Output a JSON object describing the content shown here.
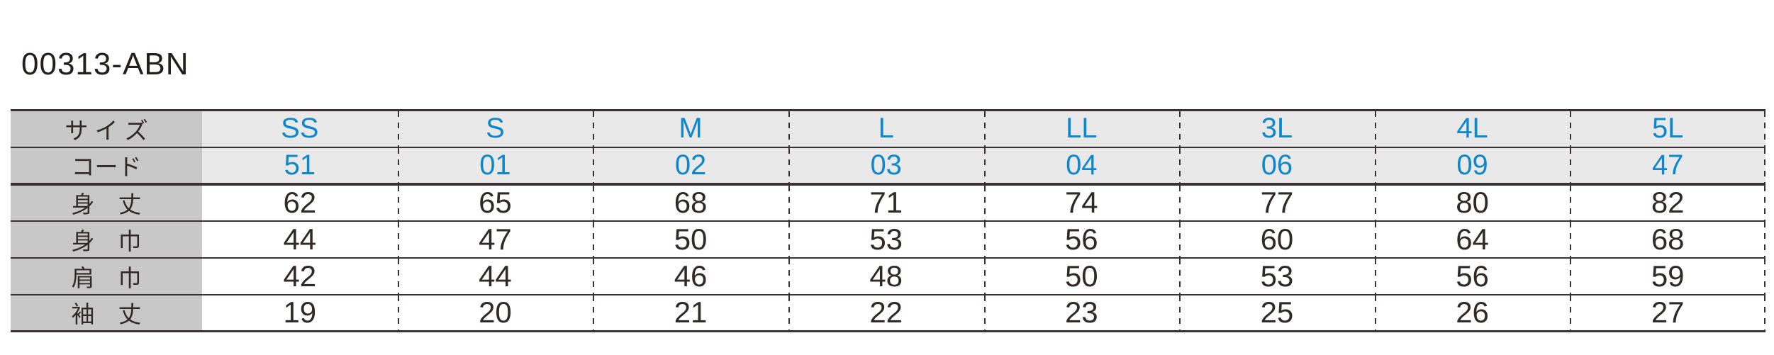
{
  "title": "00313-ABN",
  "colors": {
    "accent_blue": "#0f87cd",
    "label_column_bg": "#c8c8c9",
    "shaded_row_bg": "#e9e9ea",
    "grid_line": "#3a3133",
    "text_dark": "#312927"
  },
  "table": {
    "size_label": "サ イ ズ",
    "code_label": "コード",
    "sizes": [
      "SS",
      "S",
      "M",
      "L",
      "LL",
      "3L",
      "4L",
      "5L"
    ],
    "codes": [
      "51",
      "01",
      "02",
      "03",
      "04",
      "06",
      "09",
      "47"
    ],
    "measure_rows": [
      {
        "label": "身　丈",
        "values": [
          "62",
          "65",
          "68",
          "71",
          "74",
          "77",
          "80",
          "82"
        ]
      },
      {
        "label": "身　巾",
        "values": [
          "44",
          "47",
          "50",
          "53",
          "56",
          "60",
          "64",
          "68"
        ]
      },
      {
        "label": "肩　巾",
        "values": [
          "42",
          "44",
          "46",
          "48",
          "50",
          "53",
          "56",
          "59"
        ]
      },
      {
        "label": "袖　丈",
        "values": [
          "19",
          "20",
          "21",
          "22",
          "23",
          "25",
          "26",
          "27"
        ]
      }
    ]
  },
  "chart_data": {
    "type": "table",
    "title": "00313-ABN",
    "columns": [
      "SS",
      "S",
      "M",
      "L",
      "LL",
      "3L",
      "4L",
      "5L"
    ],
    "rows": [
      {
        "label": "サイズ",
        "values": [
          "SS",
          "S",
          "M",
          "L",
          "LL",
          "3L",
          "4L",
          "5L"
        ]
      },
      {
        "label": "コード",
        "values": [
          "51",
          "01",
          "02",
          "03",
          "04",
          "06",
          "09",
          "47"
        ]
      },
      {
        "label": "身丈",
        "values": [
          62,
          65,
          68,
          71,
          74,
          77,
          80,
          82
        ]
      },
      {
        "label": "身巾",
        "values": [
          44,
          47,
          50,
          53,
          56,
          60,
          64,
          68
        ]
      },
      {
        "label": "肩巾",
        "values": [
          42,
          44,
          46,
          48,
          50,
          53,
          56,
          59
        ]
      },
      {
        "label": "袖丈",
        "values": [
          19,
          20,
          21,
          22,
          23,
          25,
          26,
          27
        ]
      }
    ]
  }
}
